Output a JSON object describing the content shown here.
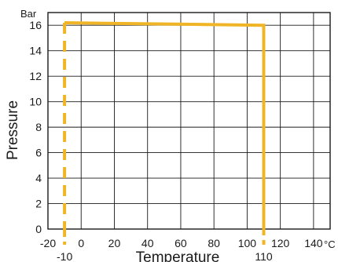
{
  "chart_data": {
    "type": "line",
    "title": "",
    "xlabel": "Temperature",
    "ylabel": "Pressure",
    "x_unit": "°C",
    "y_unit": "Bar",
    "xlim": [
      -20,
      150
    ],
    "ylim": [
      0,
      17
    ],
    "xticks": [
      -20,
      0,
      20,
      40,
      60,
      80,
      100,
      120,
      140
    ],
    "yticks": [
      0,
      2,
      4,
      6,
      8,
      10,
      12,
      14,
      16
    ],
    "grid": true,
    "series": [
      {
        "style": "solid",
        "color": "#f0b526",
        "x": [
          -10,
          110,
          110
        ],
        "y": [
          16.2,
          16,
          0
        ]
      },
      {
        "style": "dashed",
        "color": "#f0b526",
        "x": [
          -10,
          -10
        ],
        "y": [
          16.2,
          0
        ]
      }
    ],
    "annotations": [
      {
        "text": "-10",
        "x": -10
      },
      {
        "text": "110",
        "x": 110
      }
    ]
  }
}
